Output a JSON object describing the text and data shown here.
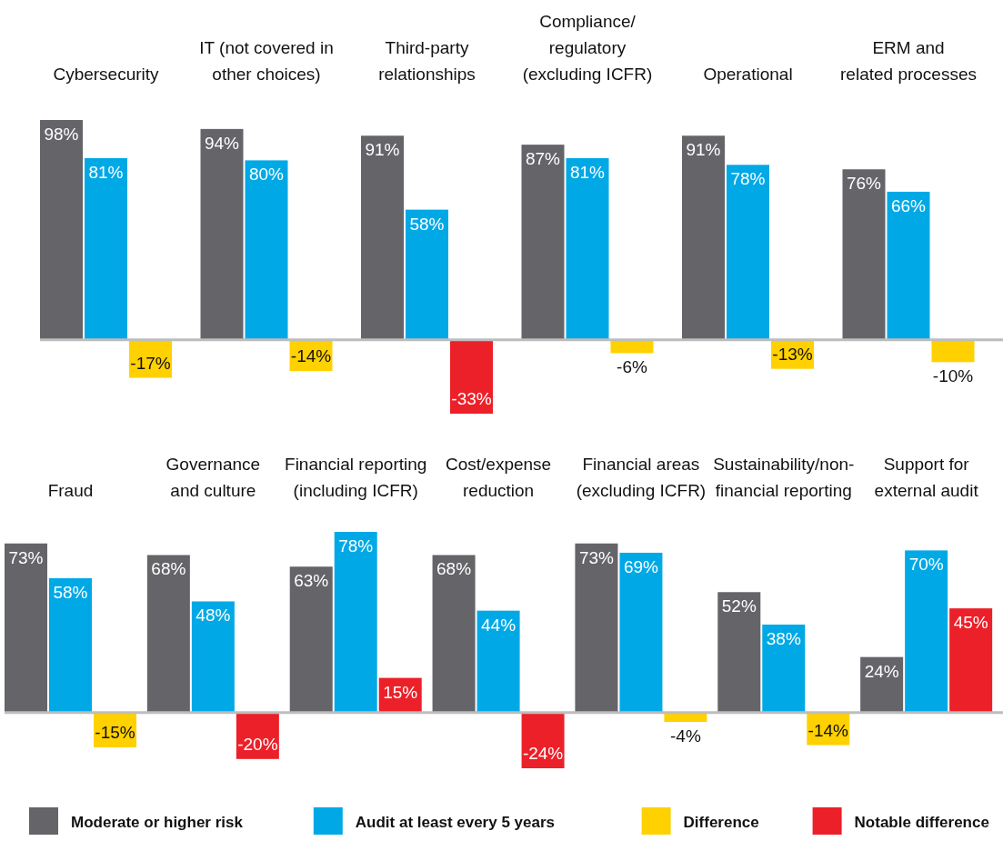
{
  "chart_data": [
    {
      "type": "bar",
      "categories": [
        "Cybersecurity",
        "IT (not covered in\nother choices)",
        "Third-party\nrelationships",
        "Compliance/\nregulatory\n(excluding ICFR)",
        "Operational",
        "ERM and\nrelated processes"
      ],
      "series": [
        {
          "color": "#646469",
          "values": [
            98,
            94,
            91,
            87,
            91,
            76
          ],
          "value_labels": [
            "98%",
            "94%",
            "91%",
            "87%",
            "91%",
            "76%"
          ]
        },
        {
          "color": "#00a9e6",
          "values": [
            81,
            80,
            58,
            81,
            78,
            66
          ],
          "value_labels": [
            "81%",
            "80%",
            "58%",
            "81%",
            "78%",
            "66%"
          ]
        },
        {
          "color": "#ffd100",
          "values": [
            -17,
            -14,
            null,
            -6,
            -13,
            -10
          ],
          "value_labels": [
            "-17%",
            "-14%",
            null,
            "-6%",
            "-13%",
            "-10%"
          ]
        },
        {
          "color": "#ec2029",
          "values": [
            null,
            null,
            -33,
            null,
            null,
            null
          ],
          "value_labels": [
            null,
            null,
            "-33%",
            null,
            null,
            null
          ]
        }
      ]
    },
    {
      "type": "bar",
      "categories": [
        "Fraud",
        "Governance\nand culture",
        "Financial reporting\n(including ICFR)",
        "Cost/expense\nreduction",
        "Financial areas\n(excluding ICFR)",
        "Sustainability/non-\nfinancial reporting",
        "Support for\nexternal audit"
      ],
      "legend": "bottom",
      "series": [
        {
          "name": "Moderate or higher risk",
          "color": "#646469",
          "values": [
            73,
            68,
            63,
            68,
            73,
            52,
            24
          ],
          "value_labels": [
            "73%",
            "68%",
            "63%",
            "68%",
            "73%",
            "52%",
            "24%"
          ]
        },
        {
          "name": "Audit at least every 5 years",
          "color": "#00a9e6",
          "values": [
            58,
            48,
            78,
            44,
            69,
            38,
            70
          ],
          "value_labels": [
            "58%",
            "48%",
            "78%",
            "44%",
            "69%",
            "38%",
            "70%"
          ]
        },
        {
          "name": "Difference",
          "color": "#ffd100",
          "values": [
            -15,
            null,
            null,
            null,
            -4,
            -14,
            null
          ],
          "value_labels": [
            "-15%",
            null,
            null,
            null,
            "-4%",
            "-14%",
            null
          ]
        },
        {
          "name": "Notable difference",
          "color": "#ec2029",
          "values": [
            null,
            -20,
            15,
            -24,
            null,
            null,
            45
          ],
          "value_labels": [
            null,
            "-20%",
            "15%",
            "-24%",
            null,
            null,
            "45%"
          ]
        }
      ]
    }
  ]
}
